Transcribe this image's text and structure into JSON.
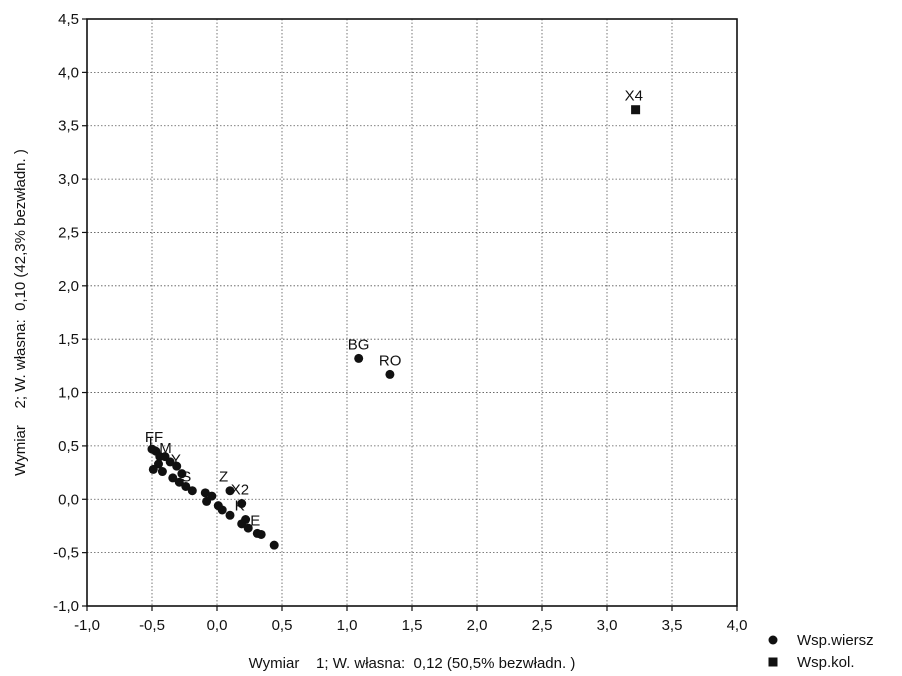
{
  "chart_data": {
    "type": "scatter",
    "xlabel": "Wymiar    1; W. własna:  0,12 (50,5% bezwładn. )",
    "ylabel": "Wymiar    2; W. własna:  0,10 (42,3% bezwładn. )",
    "xlim": [
      -1.0,
      4.0
    ],
    "ylim": [
      -1.0,
      4.5
    ],
    "x_ticks": [
      -1.0,
      -0.5,
      0.0,
      0.5,
      1.0,
      1.5,
      2.0,
      2.5,
      3.0,
      3.5,
      4.0
    ],
    "x_tick_labels": [
      "-1,0",
      "-0,5",
      "0,0",
      "0,5",
      "1,0",
      "1,5",
      "2,0",
      "2,5",
      "3,0",
      "3,5",
      "4,0"
    ],
    "y_ticks": [
      -1.0,
      -0.5,
      0.0,
      0.5,
      1.0,
      1.5,
      2.0,
      2.5,
      3.0,
      3.5,
      4.0,
      4.5
    ],
    "y_tick_labels": [
      "-1,0",
      "-0,5",
      "0,0",
      "0,5",
      "1,0",
      "1,5",
      "2,0",
      "2,5",
      "3,0",
      "3,5",
      "4,0",
      "4,5"
    ],
    "grid": true,
    "legend_position": "bottom-right",
    "series": [
      {
        "name": "Wsp.wiersz",
        "marker": "circle",
        "color": "#111111",
        "points": [
          {
            "x": -0.47,
            "y": 0.45,
            "label": "FF"
          },
          {
            "x": -0.5,
            "y": 0.47,
            "label": ""
          },
          {
            "x": -0.44,
            "y": 0.4,
            "label": "L"
          },
          {
            "x": -0.4,
            "y": 0.4,
            "label": ""
          },
          {
            "x": -0.36,
            "y": 0.35,
            "label": "M"
          },
          {
            "x": -0.45,
            "y": 0.33,
            "label": ""
          },
          {
            "x": -0.31,
            "y": 0.31,
            "label": ""
          },
          {
            "x": -0.49,
            "y": 0.28,
            "label": ""
          },
          {
            "x": -0.42,
            "y": 0.26,
            "label": ""
          },
          {
            "x": -0.27,
            "y": 0.24,
            "label": "Y"
          },
          {
            "x": -0.34,
            "y": 0.2,
            "label": ""
          },
          {
            "x": -0.29,
            "y": 0.16,
            "label": ""
          },
          {
            "x": -0.24,
            "y": 0.12,
            "label": ""
          },
          {
            "x": -0.19,
            "y": 0.08,
            "label": "S"
          },
          {
            "x": -0.09,
            "y": 0.06,
            "label": ""
          },
          {
            "x": -0.04,
            "y": 0.03,
            "label": ""
          },
          {
            "x": 0.1,
            "y": 0.08,
            "label": "Z"
          },
          {
            "x": -0.08,
            "y": -0.02,
            "label": ""
          },
          {
            "x": 0.01,
            "y": -0.06,
            "label": ""
          },
          {
            "x": 0.19,
            "y": -0.04,
            "label": "X2"
          },
          {
            "x": 0.04,
            "y": -0.1,
            "label": ""
          },
          {
            "x": 0.1,
            "y": -0.15,
            "label": ""
          },
          {
            "x": 0.22,
            "y": -0.19,
            "label": "K"
          },
          {
            "x": 0.19,
            "y": -0.23,
            "label": ""
          },
          {
            "x": 0.24,
            "y": -0.27,
            "label": ""
          },
          {
            "x": 0.31,
            "y": -0.32,
            "label": ""
          },
          {
            "x": 0.34,
            "y": -0.33,
            "label": "E"
          },
          {
            "x": 0.44,
            "y": -0.43,
            "label": ""
          },
          {
            "x": 1.09,
            "y": 1.32,
            "label": "BG"
          },
          {
            "x": 1.33,
            "y": 1.17,
            "label": "RO"
          }
        ]
      },
      {
        "name": "Wsp.kol.",
        "marker": "square",
        "color": "#111111",
        "points": [
          {
            "x": 3.22,
            "y": 3.65,
            "label": "X4"
          }
        ]
      }
    ]
  }
}
